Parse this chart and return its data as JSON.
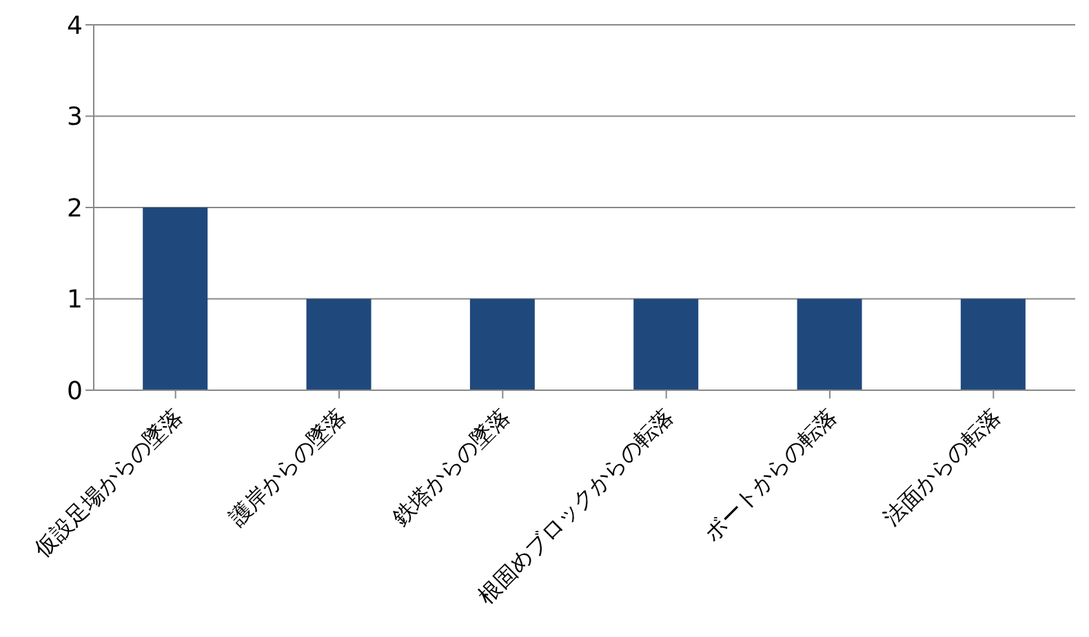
{
  "chart_data": {
    "type": "bar",
    "categories": [
      "仮設足場からの墜落",
      "護岸からの墜落",
      "鉄塔からの墜落",
      "根固めブロックからの転落",
      "ボートからの転落",
      "法面からの転落"
    ],
    "values": [
      2,
      1,
      1,
      1,
      1,
      1
    ],
    "color": "#1f497d",
    "ylim": [
      0,
      4
    ],
    "yticks": [
      0,
      1,
      2,
      3,
      4
    ],
    "grid": "y"
  }
}
